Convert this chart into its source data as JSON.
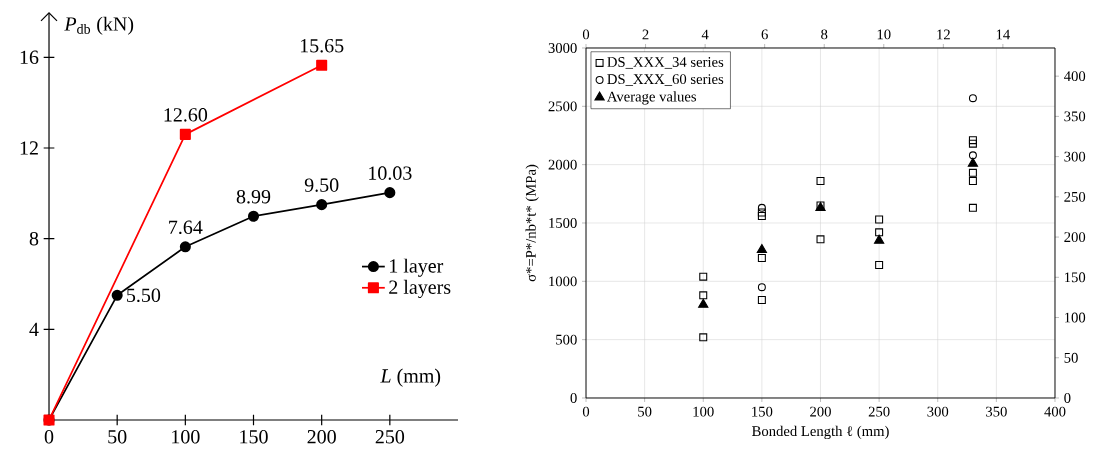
{
  "chart_data": [
    {
      "type": "line",
      "ylabel": "*P*$_{db}$ (kN)",
      "xlabel": "*L* (mm)",
      "xlim": [
        0,
        300
      ],
      "ylim": [
        0,
        18
      ],
      "xticks": [
        0,
        50,
        100,
        150,
        200,
        250
      ],
      "yticks": [
        4,
        8,
        12,
        16
      ],
      "legend": "right",
      "grid": false,
      "series": [
        {
          "name": "1 layer",
          "color": "#000000",
          "marker": "circle",
          "x": [
            0,
            50,
            100,
            150,
            200,
            250
          ],
          "values": [
            0,
            5.5,
            7.64,
            8.99,
            9.5,
            10.03
          ],
          "value_labels": [
            null,
            "5.50",
            "7.64",
            "8.99",
            "9.50",
            "10.03"
          ]
        },
        {
          "name": "2 layers",
          "color": "#ff0000",
          "marker": "square",
          "x": [
            0,
            100,
            200
          ],
          "values": [
            0,
            12.6,
            15.65
          ],
          "value_labels": [
            null,
            "12.60",
            "15.65"
          ]
        }
      ]
    },
    {
      "type": "scatter",
      "xlabel": "Bonded Length ℓ (mm)",
      "ylabel": "σ*=P*/nb*t* (MPa)",
      "xlim": [
        0,
        400
      ],
      "xticks": [
        0,
        50,
        100,
        150,
        200,
        250,
        300,
        350,
        400
      ],
      "ylim": [
        0,
        3000
      ],
      "yticks": [
        0,
        500,
        1000,
        1500,
        2000,
        2500,
        3000
      ],
      "x2lim": [
        0,
        15.75
      ],
      "x2ticks": [
        0,
        2,
        4,
        6,
        8,
        10,
        12,
        14
      ],
      "y2lim": [
        0,
        435
      ],
      "y2ticks": [
        0,
        50,
        100,
        150,
        200,
        250,
        300,
        350,
        400
      ],
      "grid": true,
      "legend": "top left",
      "series": [
        {
          "name": "DS_XXX_34 series",
          "color": "#000000",
          "marker": "square",
          "x": [
            100,
            100,
            100,
            150,
            150,
            150,
            150,
            200,
            200,
            200,
            250,
            250,
            250,
            330,
            330,
            330,
            330,
            330
          ],
          "values": [
            1040,
            880,
            520,
            1590,
            1560,
            1200,
            840,
            1860,
            1650,
            1360,
            1530,
            1420,
            1140,
            2210,
            2180,
            1930,
            1860,
            1630
          ]
        },
        {
          "name": "DS_XXX_60 series",
          "color": "#000000",
          "marker": "circle",
          "x": [
            150,
            150,
            330,
            330
          ],
          "values": [
            1630,
            950,
            2570,
            2080
          ]
        },
        {
          "name": "Average values",
          "color": "#000000",
          "marker": "triangle",
          "x": [
            100,
            150,
            200,
            250,
            330
          ],
          "values": [
            800,
            1270,
            1630,
            1350,
            2010
          ]
        }
      ]
    }
  ]
}
